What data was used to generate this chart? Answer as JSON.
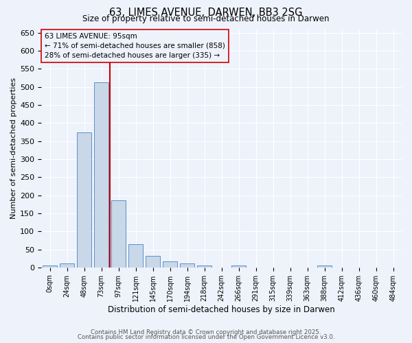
{
  "title1": "63, LIMES AVENUE, DARWEN, BB3 2SG",
  "title2": "Size of property relative to semi-detached houses in Darwen",
  "xlabel": "Distribution of semi-detached houses by size in Darwen",
  "ylabel": "Number of semi-detached properties",
  "bins": [
    "0sqm",
    "24sqm",
    "48sqm",
    "73sqm",
    "97sqm",
    "121sqm",
    "145sqm",
    "170sqm",
    "194sqm",
    "218sqm",
    "242sqm",
    "266sqm",
    "291sqm",
    "315sqm",
    "339sqm",
    "363sqm",
    "388sqm",
    "412sqm",
    "436sqm",
    "460sqm",
    "484sqm"
  ],
  "heights": [
    5,
    12,
    374,
    512,
    185,
    65,
    32,
    17,
    12,
    5,
    0,
    6,
    0,
    0,
    0,
    0,
    5,
    0,
    0,
    0,
    0
  ],
  "annotation_title": "63 LIMES AVENUE: 95sqm",
  "annotation_line1": "← 71% of semi-detached houses are smaller (858)",
  "annotation_line2": "28% of semi-detached houses are larger (335) →",
  "bar_color": "#c8d8e8",
  "bar_edge_color": "#5b8fc9",
  "vline_color": "#cc0000",
  "background_color": "#eef2fb",
  "grid_color": "#ffffff",
  "footer1": "Contains HM Land Registry data © Crown copyright and database right 2025.",
  "footer2": "Contains public sector information licensed under the Open Government Licence v3.0.",
  "ylim": [
    0,
    660
  ],
  "yticks": [
    0,
    50,
    100,
    150,
    200,
    250,
    300,
    350,
    400,
    450,
    500,
    550,
    600,
    650
  ]
}
